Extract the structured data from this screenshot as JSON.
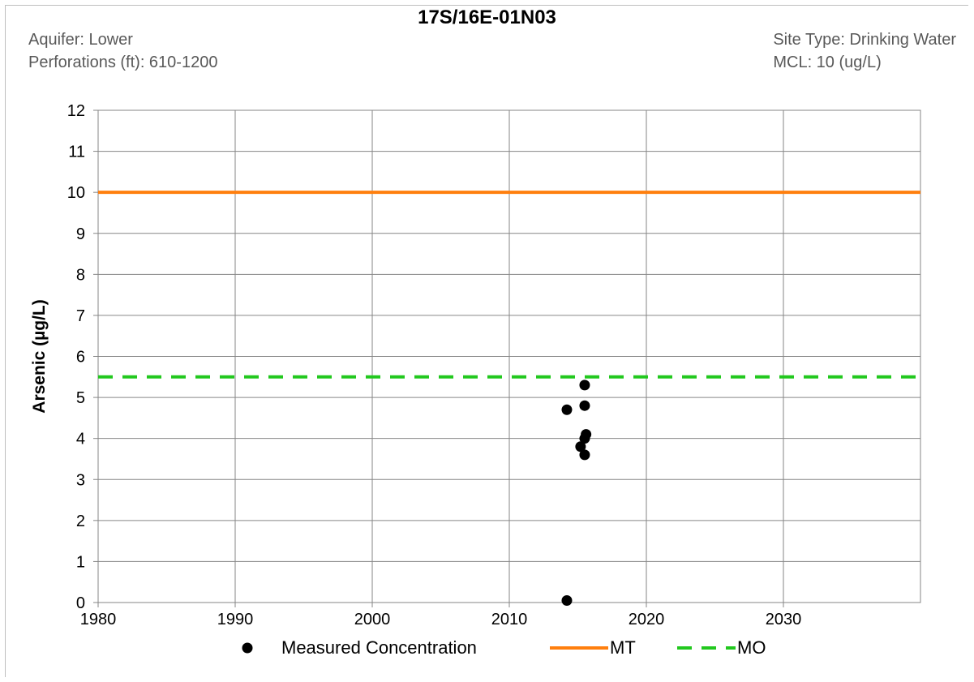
{
  "header": {
    "title": "17S/16E-01N03",
    "aquifer": "Aquifer: Lower",
    "perforations": "Perforations (ft): 610-1200",
    "site_type": "Site Type: Drinking Water",
    "mcl": "MCL: 10 (ug/L)"
  },
  "chart_data": {
    "type": "scatter",
    "title": "17S/16E-01N03",
    "xlabel": "",
    "ylabel": "Arsenic (µg/L)",
    "xlim": [
      1980,
      2040
    ],
    "ylim": [
      0,
      12
    ],
    "x_ticks": [
      1980,
      1990,
      2000,
      2010,
      2020,
      2030
    ],
    "y_ticks": [
      0,
      1,
      2,
      3,
      4,
      5,
      6,
      7,
      8,
      9,
      10,
      11,
      12
    ],
    "grid": true,
    "legend_position": "bottom",
    "series": [
      {
        "name": "Measured Concentration",
        "kind": "scatter",
        "color": "#000000",
        "points": [
          {
            "x": 2014.2,
            "y": 4.7
          },
          {
            "x": 2014.2,
            "y": 0.05
          },
          {
            "x": 2015.2,
            "y": 3.8
          },
          {
            "x": 2015.5,
            "y": 5.3
          },
          {
            "x": 2015.5,
            "y": 4.8
          },
          {
            "x": 2015.5,
            "y": 3.6
          },
          {
            "x": 2015.6,
            "y": 4.1
          },
          {
            "x": 2015.5,
            "y": 4.0
          }
        ]
      },
      {
        "name": "MT",
        "kind": "hline",
        "y": 10,
        "color": "#ff7f0e",
        "style": "solid"
      },
      {
        "name": "MO",
        "kind": "hline",
        "y": 5.5,
        "color": "#22c81e",
        "style": "dashed"
      }
    ]
  }
}
